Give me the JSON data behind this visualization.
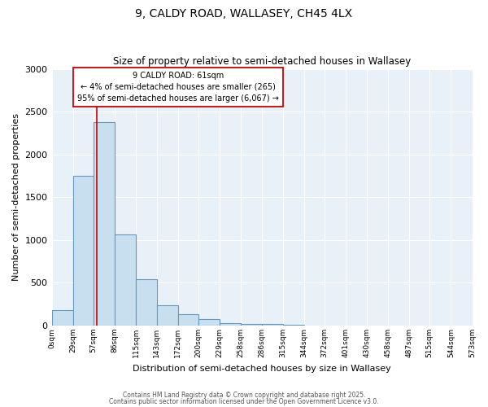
{
  "title1": "9, CALDY ROAD, WALLASEY, CH45 4LX",
  "title2": "Size of property relative to semi-detached houses in Wallasey",
  "xlabel": "Distribution of semi-detached houses by size in Wallasey",
  "ylabel": "Number of semi-detached properties",
  "bin_edges": [
    0,
    29,
    57,
    86,
    115,
    143,
    172,
    200,
    229,
    258,
    286,
    315,
    344,
    372,
    401,
    430,
    458,
    487,
    515,
    544,
    573
  ],
  "bar_heights": [
    185,
    1750,
    2380,
    1070,
    540,
    240,
    130,
    75,
    25,
    20,
    15,
    5,
    0,
    0,
    0,
    0,
    0,
    0,
    0,
    0
  ],
  "bar_color": "#c8dff0",
  "bar_edge_color": "#6699bb",
  "property_line_x": 61,
  "property_line_color": "#cc0000",
  "annotation_line1": "9 CALDY ROAD: 61sqm",
  "annotation_line2": "← 4% of semi-detached houses are smaller (265)",
  "annotation_line3": "95% of semi-detached houses are larger (6,067) →",
  "annotation_box_color": "#cc0000",
  "ylim": [
    0,
    3000
  ],
  "yticks": [
    0,
    500,
    1000,
    1500,
    2000,
    2500,
    3000
  ],
  "tick_labels": [
    "0sqm",
    "29sqm",
    "57sqm",
    "86sqm",
    "115sqm",
    "143sqm",
    "172sqm",
    "200sqm",
    "229sqm",
    "258sqm",
    "286sqm",
    "315sqm",
    "344sqm",
    "372sqm",
    "401sqm",
    "430sqm",
    "458sqm",
    "487sqm",
    "515sqm",
    "544sqm",
    "573sqm"
  ],
  "footer1": "Contains HM Land Registry data © Crown copyright and database right 2025.",
  "footer2": "Contains public sector information licensed under the Open Government Licence v3.0.",
  "background_color": "#ffffff",
  "plot_bg_color": "#e8f0f8",
  "grid_color": "#ffffff"
}
